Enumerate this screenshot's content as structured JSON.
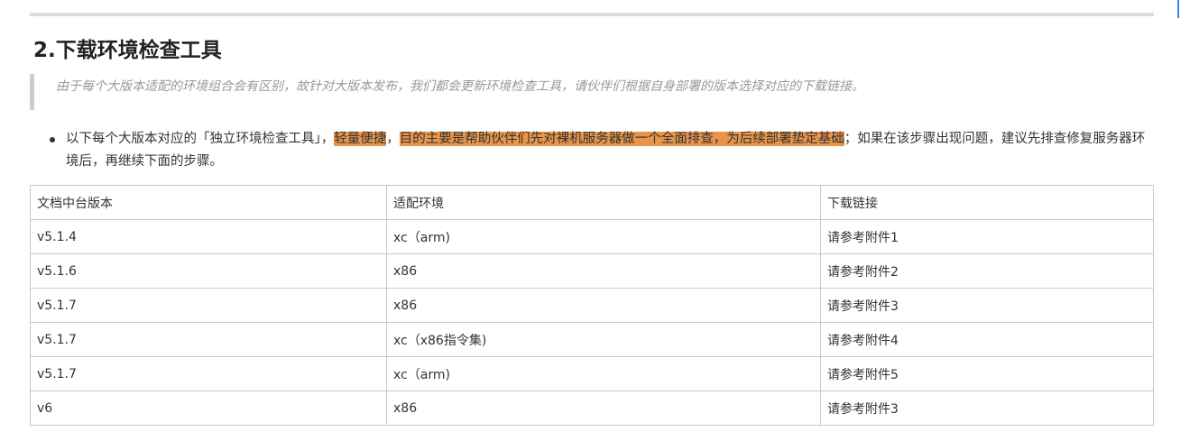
{
  "heading": "2.下载环境检查工具",
  "quote": "由于每个大版本适配的环境组合会有区别，故针对大版本发布，我们都会更新环境检查工具，请伙伴们根据自身部署的版本选择对应的下载链接。",
  "bullet": {
    "part1": "以下每个大版本对应的「独立环境检查工具」，",
    "hl1": "轻量便捷",
    "sep": "，",
    "hl2": "目的主要是帮助伙伴们先对裸机服务器做一个全面排查，为后续部署垫定基础",
    "part2": "；如果在该步骤出现问题，建议先排查修复服务器环境后，再继续下面的步骤。"
  },
  "colors": {
    "highlight": "#e8954a"
  },
  "table": {
    "headers": [
      "文档中台版本",
      "适配环境",
      "下载链接"
    ],
    "rows": [
      [
        "v5.1.4",
        "xc（arm)",
        "请参考附件1"
      ],
      [
        "v5.1.6",
        "x86",
        "请参考附件2"
      ],
      [
        "v5.1.7",
        "x86",
        "请参考附件3"
      ],
      [
        "v5.1.7",
        "xc（x86指令集)",
        "请参考附件4"
      ],
      [
        "v5.1.7",
        "xc（arm)",
        "请参考附件5"
      ],
      [
        "v6",
        "x86",
        "请参考附件3"
      ]
    ]
  }
}
